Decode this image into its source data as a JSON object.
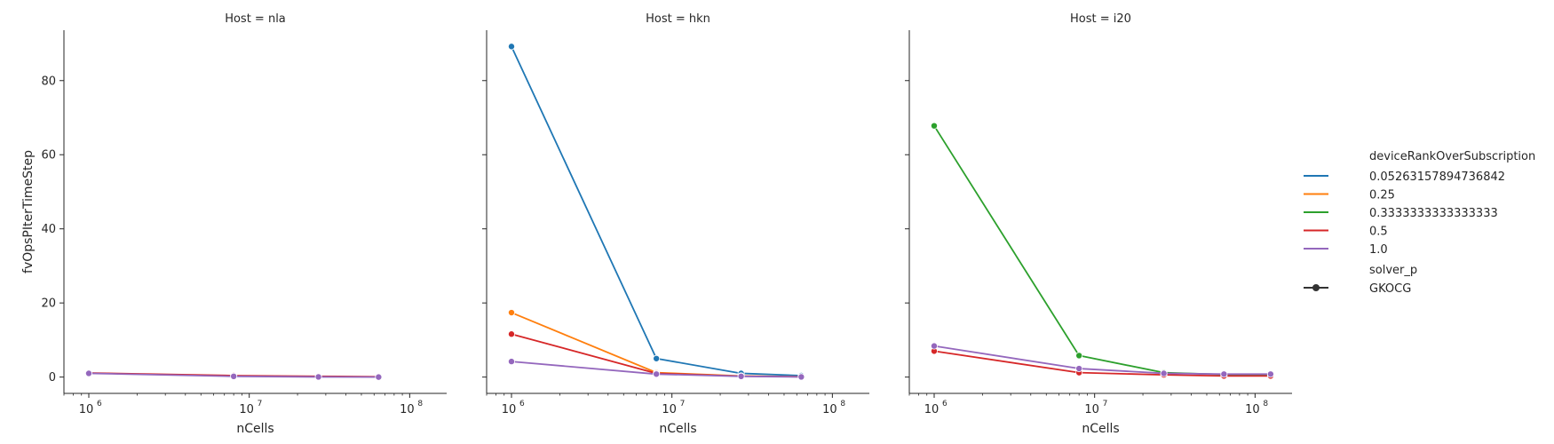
{
  "chart_data": {
    "type": "line",
    "x_scale": "log",
    "xlabel": "nCells",
    "ylabel": "fvOpsPIterTimeStep",
    "xlim": [
      700000,
      170000000
    ],
    "ylim": [
      -4.4,
      93.6
    ],
    "x_ticks": [
      1000000,
      10000000,
      100000000
    ],
    "x_tick_labels": [
      "10",
      "10",
      "10"
    ],
    "x_tick_exponents": [
      "6",
      "7",
      "8"
    ],
    "y_ticks": [
      0,
      20,
      40,
      60,
      80
    ],
    "y_tick_labels": [
      "0",
      "20",
      "40",
      "60",
      "80"
    ],
    "grid": false,
    "legend_position": "right",
    "legend": {
      "hue_title": "deviceRankOverSubscription",
      "hue_entries": [
        {
          "label": "0.05263157894736842",
          "color": "#1f77b4"
        },
        {
          "label": "0.25",
          "color": "#ff7f0e"
        },
        {
          "label": "0.3333333333333333",
          "color": "#2ca02c"
        },
        {
          "label": "0.5",
          "color": "#d62728"
        },
        {
          "label": "1.0",
          "color": "#9467bd"
        }
      ],
      "style_title": "solver_p",
      "style_entries": [
        {
          "label": "GKOCG",
          "color": "#333333"
        }
      ]
    },
    "panels": [
      {
        "title": "Host = nla",
        "series": [
          {
            "hue": "0.5",
            "color": "#d62728",
            "x": [
              1000000,
              8000000,
              27000000,
              64000000
            ],
            "y": [
              1.1,
              0.4,
              0.2,
              0.1
            ]
          },
          {
            "hue": "1.0",
            "color": "#9467bd",
            "x": [
              1000000,
              8000000,
              27000000,
              64000000
            ],
            "y": [
              1.0,
              0.2,
              0.05,
              0.0
            ]
          }
        ]
      },
      {
        "title": "Host = hkn",
        "series": [
          {
            "hue": "0.05263157894736842",
            "color": "#1f77b4",
            "x": [
              1000000,
              8000000,
              27000000,
              64000000
            ],
            "y": [
              89.2,
              5.0,
              1.0,
              0.4
            ]
          },
          {
            "hue": "0.25",
            "color": "#ff7f0e",
            "x": [
              1000000,
              8000000,
              27000000,
              64000000
            ],
            "y": [
              17.4,
              1.2,
              0.3,
              0.1
            ]
          },
          {
            "hue": "0.5",
            "color": "#d62728",
            "x": [
              1000000,
              8000000,
              27000000,
              64000000
            ],
            "y": [
              11.6,
              1.0,
              0.25,
              0.1
            ]
          },
          {
            "hue": "1.0",
            "color": "#9467bd",
            "x": [
              1000000,
              8000000,
              27000000,
              64000000
            ],
            "y": [
              4.2,
              0.8,
              0.2,
              0.05
            ]
          }
        ]
      },
      {
        "title": "Host = i20",
        "series": [
          {
            "hue": "0.3333333333333333",
            "color": "#2ca02c",
            "x": [
              1000000,
              8000000,
              27000000,
              64000000,
              125000000
            ],
            "y": [
              67.8,
              5.8,
              1.2,
              0.7,
              0.7
            ]
          },
          {
            "hue": "0.5",
            "color": "#d62728",
            "x": [
              1000000,
              8000000,
              27000000,
              64000000,
              125000000
            ],
            "y": [
              7.0,
              1.2,
              0.6,
              0.3,
              0.3
            ]
          },
          {
            "hue": "1.0",
            "color": "#9467bd",
            "x": [
              1000000,
              8000000,
              27000000,
              64000000,
              125000000
            ],
            "y": [
              8.4,
              2.3,
              1.0,
              0.8,
              0.8
            ]
          }
        ]
      }
    ]
  }
}
